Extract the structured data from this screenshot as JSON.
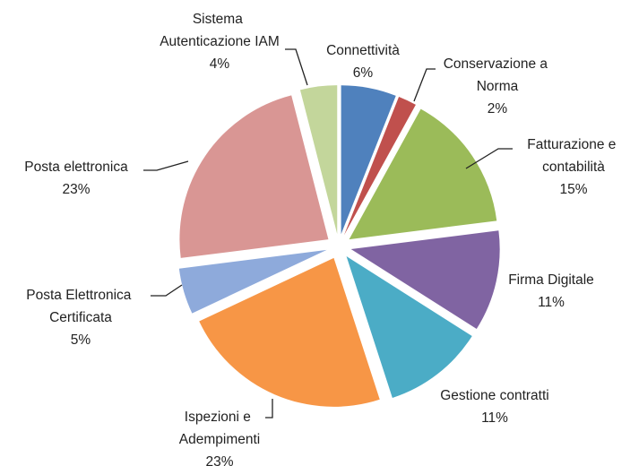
{
  "chart_data": {
    "type": "pie",
    "categories": [
      "Connettività",
      "Conservazione a Norma",
      "Fatturazione e contabilità",
      "Firma Digitale",
      "Gestione contratti",
      "Ispezioni e Adempimenti",
      "Posta Elettronica Certificata",
      "Posta elettronica",
      "Sistema Autenticazione IAM"
    ],
    "values": [
      6,
      2,
      15,
      11,
      11,
      23,
      5,
      23,
      4
    ],
    "value_labels": [
      "6%",
      "2%",
      "15%",
      "11%",
      "11%",
      "23%",
      "5%",
      "23%",
      "4%"
    ],
    "colors": [
      "#4f81bd",
      "#c0504d",
      "#9bbb59",
      "#8064a2",
      "#4bacc6",
      "#f79646",
      "#8eaadb",
      "#d99694",
      "#c3d69b"
    ]
  }
}
